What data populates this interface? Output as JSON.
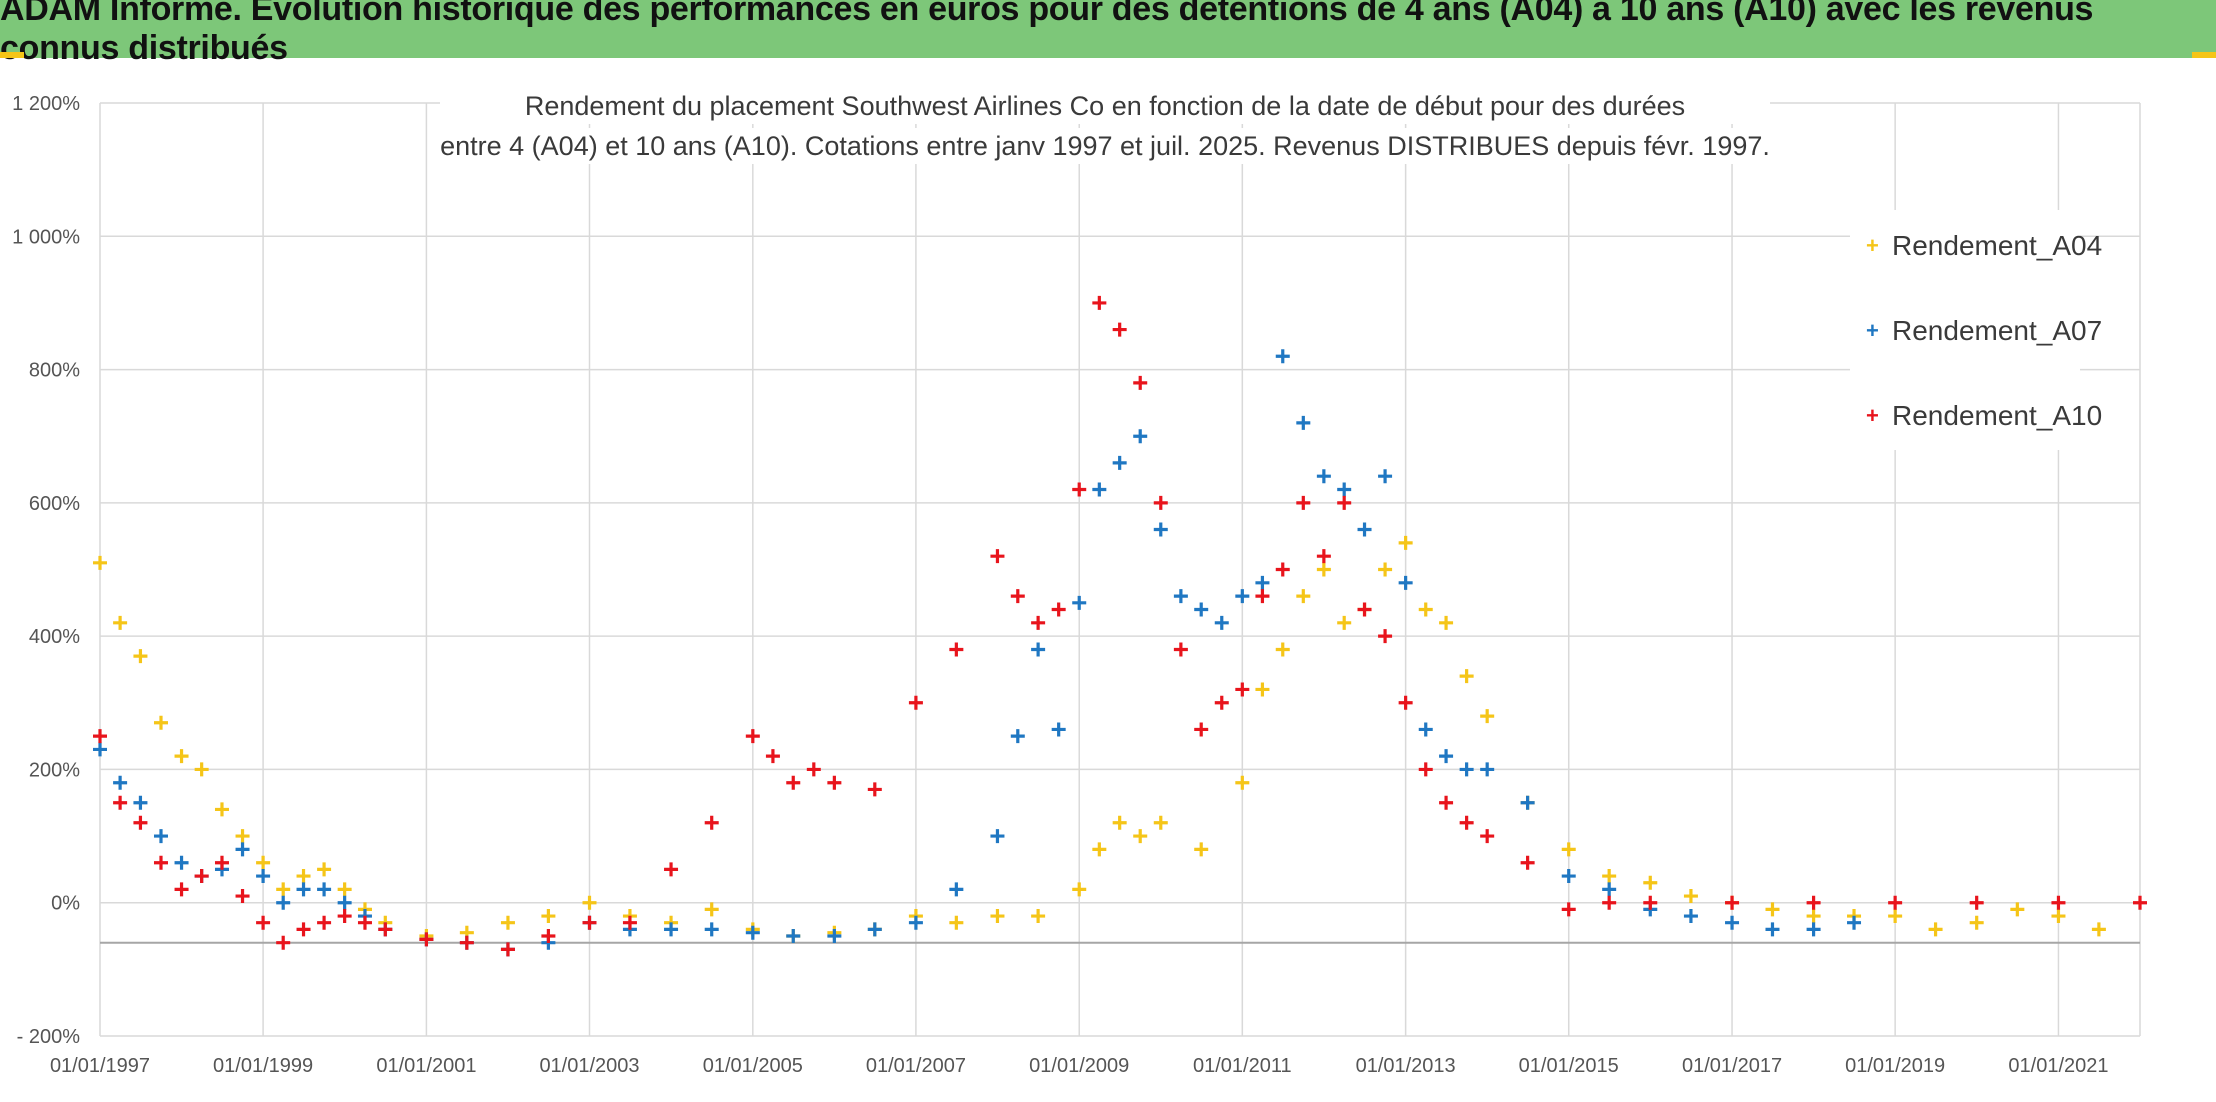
{
  "banner": {
    "title": "ADAM Informe. Evolution historique des performances en euros pour des détentions de 4 ans (A04) à 10 ans (A10) avec les revenus connus distribués"
  },
  "colors": {
    "banner_bg": "#7dc779",
    "banner_accent": "#f5c518",
    "A04": "#f5c518",
    "A07": "#1f77c2",
    "A10": "#e8141c",
    "grid": "#d9d9d9"
  },
  "chart_data": {
    "type": "scatter",
    "title": "Rendement du placement Southwest Airlines Co en fonction de la date de début pour des durées",
    "subtitle": "entre 4 (A04) et 10 ans (A10). Cotations entre janv 1997 et juil. 2025. Revenus DISTRIBUES depuis févr. 1997.",
    "xlabel": "",
    "ylabel": "",
    "x_range": [
      "1997-01-01",
      "2022-01-01"
    ],
    "ylim": [
      -200,
      1200
    ],
    "y_ticks": [
      -200,
      0,
      200,
      400,
      600,
      800,
      1000,
      1200
    ],
    "y_tick_labels": [
      "- 200%",
      "0%",
      "200%",
      "400%",
      "600%",
      "800%",
      "1 000%",
      "1 200%"
    ],
    "x_ticks": [
      "1997-01-01",
      "1999-01-01",
      "2001-01-01",
      "2003-01-01",
      "2005-01-01",
      "2007-01-01",
      "2009-01-01",
      "2011-01-01",
      "2013-01-01",
      "2015-01-01",
      "2017-01-01",
      "2019-01-01",
      "2021-01-01"
    ],
    "x_tick_labels": [
      "01/01/1997",
      "01/01/1999",
      "01/01/2001",
      "01/01/2003",
      "01/01/2005",
      "01/01/2007",
      "01/01/2009",
      "01/01/2011",
      "01/01/2013",
      "01/01/2015",
      "01/01/2017",
      "01/01/2019",
      "01/01/2021"
    ],
    "reference_line_y": -60,
    "grid": true,
    "legend_position": "right",
    "marker": "+",
    "series": [
      {
        "name": "Rendement_A04",
        "color": "#f5c518",
        "points": [
          [
            "1997-01-01",
            510
          ],
          [
            "1997-04-01",
            420
          ],
          [
            "1997-07-01",
            370
          ],
          [
            "1997-10-01",
            270
          ],
          [
            "1998-01-01",
            220
          ],
          [
            "1998-04-01",
            200
          ],
          [
            "1998-07-01",
            140
          ],
          [
            "1998-10-01",
            100
          ],
          [
            "1999-01-01",
            60
          ],
          [
            "1999-04-01",
            20
          ],
          [
            "1999-07-01",
            40
          ],
          [
            "1999-10-01",
            50
          ],
          [
            "2000-01-01",
            20
          ],
          [
            "2000-04-01",
            -10
          ],
          [
            "2000-07-01",
            -30
          ],
          [
            "2001-01-01",
            -50
          ],
          [
            "2001-07-01",
            -45
          ],
          [
            "2002-01-01",
            -30
          ],
          [
            "2002-07-01",
            -20
          ],
          [
            "2003-01-01",
            0
          ],
          [
            "2003-07-01",
            -20
          ],
          [
            "2004-01-01",
            -30
          ],
          [
            "2004-07-01",
            -10
          ],
          [
            "2005-01-01",
            -40
          ],
          [
            "2005-07-01",
            -50
          ],
          [
            "2006-01-01",
            -45
          ],
          [
            "2006-07-01",
            -40
          ],
          [
            "2007-01-01",
            -20
          ],
          [
            "2007-07-01",
            -30
          ],
          [
            "2008-01-01",
            -20
          ],
          [
            "2008-07-01",
            -20
          ],
          [
            "2009-01-01",
            20
          ],
          [
            "2009-04-01",
            80
          ],
          [
            "2009-07-01",
            120
          ],
          [
            "2009-10-01",
            100
          ],
          [
            "2010-01-01",
            120
          ],
          [
            "2010-07-01",
            80
          ],
          [
            "2011-01-01",
            180
          ],
          [
            "2011-04-01",
            320
          ],
          [
            "2011-07-01",
            380
          ],
          [
            "2011-10-01",
            460
          ],
          [
            "2012-01-01",
            500
          ],
          [
            "2012-04-01",
            420
          ],
          [
            "2012-07-01",
            440
          ],
          [
            "2012-10-01",
            500
          ],
          [
            "2013-01-01",
            540
          ],
          [
            "2013-04-01",
            440
          ],
          [
            "2013-07-01",
            420
          ],
          [
            "2013-10-01",
            340
          ],
          [
            "2014-01-01",
            280
          ],
          [
            "2014-07-01",
            150
          ],
          [
            "2015-01-01",
            80
          ],
          [
            "2015-07-01",
            40
          ],
          [
            "2016-01-01",
            30
          ],
          [
            "2016-07-01",
            10
          ],
          [
            "2017-01-01",
            0
          ],
          [
            "2017-07-01",
            -10
          ],
          [
            "2018-01-01",
            -20
          ],
          [
            "2018-07-01",
            -20
          ],
          [
            "2019-01-01",
            -20
          ],
          [
            "2019-07-01",
            -40
          ],
          [
            "2020-01-01",
            -30
          ],
          [
            "2020-07-01",
            -10
          ],
          [
            "2021-01-01",
            -20
          ],
          [
            "2021-07-01",
            -40
          ]
        ]
      },
      {
        "name": "Rendement_A07",
        "color": "#1f77c2",
        "points": [
          [
            "1997-01-01",
            230
          ],
          [
            "1997-04-01",
            180
          ],
          [
            "1997-07-01",
            150
          ],
          [
            "1997-10-01",
            100
          ],
          [
            "1998-01-01",
            60
          ],
          [
            "1998-04-01",
            40
          ],
          [
            "1998-07-01",
            50
          ],
          [
            "1998-10-01",
            80
          ],
          [
            "1999-01-01",
            40
          ],
          [
            "1999-04-01",
            0
          ],
          [
            "1999-07-01",
            20
          ],
          [
            "1999-10-01",
            20
          ],
          [
            "2000-01-01",
            0
          ],
          [
            "2000-04-01",
            -20
          ],
          [
            "2000-07-01",
            -40
          ],
          [
            "2001-01-01",
            -55
          ],
          [
            "2001-07-01",
            -60
          ],
          [
            "2002-01-01",
            -70
          ],
          [
            "2002-07-01",
            -60
          ],
          [
            "2003-01-01",
            -30
          ],
          [
            "2003-07-01",
            -40
          ],
          [
            "2004-01-01",
            -40
          ],
          [
            "2004-07-01",
            -40
          ],
          [
            "2005-01-01",
            -45
          ],
          [
            "2005-07-01",
            -50
          ],
          [
            "2006-01-01",
            -50
          ],
          [
            "2006-07-01",
            -40
          ],
          [
            "2007-01-01",
            -30
          ],
          [
            "2007-07-01",
            20
          ],
          [
            "2008-01-01",
            100
          ],
          [
            "2008-04-01",
            250
          ],
          [
            "2008-07-01",
            380
          ],
          [
            "2008-10-01",
            260
          ],
          [
            "2009-01-01",
            450
          ],
          [
            "2009-04-01",
            620
          ],
          [
            "2009-07-01",
            660
          ],
          [
            "2009-10-01",
            700
          ],
          [
            "2010-01-01",
            560
          ],
          [
            "2010-04-01",
            460
          ],
          [
            "2010-07-01",
            440
          ],
          [
            "2010-10-01",
            420
          ],
          [
            "2011-01-01",
            460
          ],
          [
            "2011-04-01",
            480
          ],
          [
            "2011-07-01",
            820
          ],
          [
            "2011-10-01",
            720
          ],
          [
            "2012-01-01",
            640
          ],
          [
            "2012-04-01",
            620
          ],
          [
            "2012-07-01",
            560
          ],
          [
            "2012-10-01",
            640
          ],
          [
            "2013-01-01",
            480
          ],
          [
            "2013-04-01",
            260
          ],
          [
            "2013-07-01",
            220
          ],
          [
            "2013-10-01",
            200
          ],
          [
            "2014-01-01",
            200
          ],
          [
            "2014-07-01",
            150
          ],
          [
            "2015-01-01",
            40
          ],
          [
            "2015-07-01",
            20
          ],
          [
            "2016-01-01",
            -10
          ],
          [
            "2016-07-01",
            -20
          ],
          [
            "2017-01-01",
            -30
          ],
          [
            "2017-07-01",
            -40
          ],
          [
            "2018-01-01",
            -40
          ],
          [
            "2018-07-01",
            -30
          ]
        ]
      },
      {
        "name": "Rendement_A10",
        "color": "#e8141c",
        "points": [
          [
            "1997-01-01",
            250
          ],
          [
            "1997-04-01",
            150
          ],
          [
            "1997-07-01",
            120
          ],
          [
            "1997-10-01",
            60
          ],
          [
            "1998-01-01",
            20
          ],
          [
            "1998-04-01",
            40
          ],
          [
            "1998-07-01",
            60
          ],
          [
            "1998-10-01",
            10
          ],
          [
            "1999-01-01",
            -30
          ],
          [
            "1999-04-01",
            -60
          ],
          [
            "1999-07-01",
            -40
          ],
          [
            "1999-10-01",
            -30
          ],
          [
            "2000-01-01",
            -20
          ],
          [
            "2000-04-01",
            -30
          ],
          [
            "2000-07-01",
            -40
          ],
          [
            "2001-01-01",
            -55
          ],
          [
            "2001-07-01",
            -60
          ],
          [
            "2002-01-01",
            -70
          ],
          [
            "2002-07-01",
            -50
          ],
          [
            "2003-01-01",
            -30
          ],
          [
            "2003-07-01",
            -30
          ],
          [
            "2004-01-01",
            50
          ],
          [
            "2004-07-01",
            120
          ],
          [
            "2005-01-01",
            250
          ],
          [
            "2005-04-01",
            220
          ],
          [
            "2005-07-01",
            180
          ],
          [
            "2005-10-01",
            200
          ],
          [
            "2006-01-01",
            180
          ],
          [
            "2006-07-01",
            170
          ],
          [
            "2007-01-01",
            300
          ],
          [
            "2007-07-01",
            380
          ],
          [
            "2008-01-01",
            520
          ],
          [
            "2008-04-01",
            460
          ],
          [
            "2008-07-01",
            420
          ],
          [
            "2008-10-01",
            440
          ],
          [
            "2009-01-01",
            620
          ],
          [
            "2009-04-01",
            900
          ],
          [
            "2009-07-01",
            860
          ],
          [
            "2009-10-01",
            780
          ],
          [
            "2010-01-01",
            600
          ],
          [
            "2010-04-01",
            380
          ],
          [
            "2010-07-01",
            260
          ],
          [
            "2010-10-01",
            300
          ],
          [
            "2011-01-01",
            320
          ],
          [
            "2011-04-01",
            460
          ],
          [
            "2011-07-01",
            500
          ],
          [
            "2011-10-01",
            600
          ],
          [
            "2012-01-01",
            520
          ],
          [
            "2012-04-01",
            600
          ],
          [
            "2012-07-01",
            440
          ],
          [
            "2012-10-01",
            400
          ],
          [
            "2013-01-01",
            300
          ],
          [
            "2013-04-01",
            200
          ],
          [
            "2013-07-01",
            150
          ],
          [
            "2013-10-01",
            120
          ],
          [
            "2014-01-01",
            100
          ],
          [
            "2014-07-01",
            60
          ],
          [
            "2015-01-01",
            -10
          ],
          [
            "2015-07-01",
            0
          ],
          [
            "2016-01-01",
            0
          ],
          [
            "2017-01-01",
            0
          ],
          [
            "2018-01-01",
            0
          ],
          [
            "2019-01-01",
            0
          ],
          [
            "2020-01-01",
            0
          ],
          [
            "2021-01-01",
            0
          ],
          [
            "2022-01-01",
            0
          ]
        ]
      }
    ]
  }
}
